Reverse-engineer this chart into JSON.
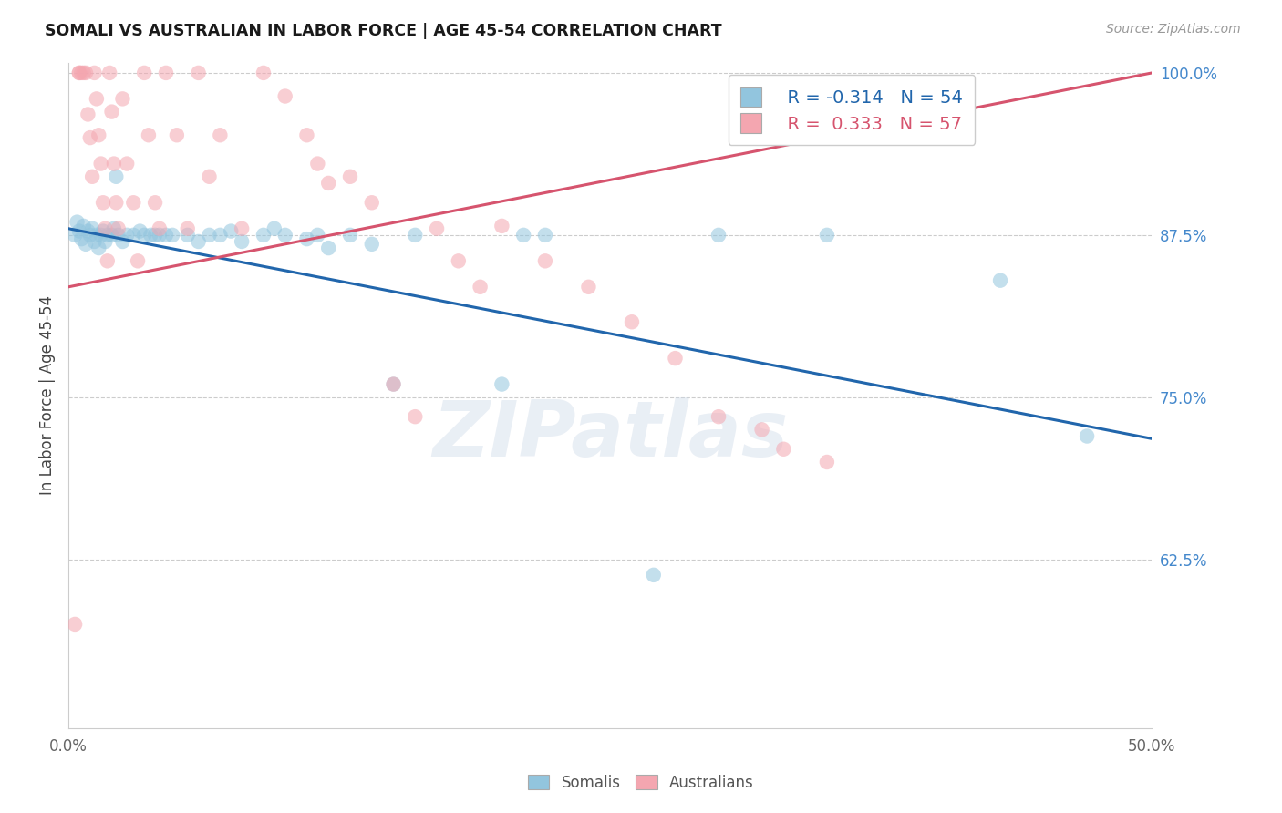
{
  "title": "SOMALI VS AUSTRALIAN IN LABOR FORCE | AGE 45-54 CORRELATION CHART",
  "source": "Source: ZipAtlas.com",
  "ylabel": "In Labor Force | Age 45-54",
  "xlim": [
    0.0,
    0.5
  ],
  "ylim": [
    0.495,
    1.008
  ],
  "yticks": [
    0.625,
    0.75,
    0.875,
    1.0
  ],
  "ytick_labels": [
    "62.5%",
    "75.0%",
    "87.5%",
    "100.0%"
  ],
  "legend_blue_r": "R = -0.314",
  "legend_blue_n": "N = 54",
  "legend_pink_r": "R =  0.333",
  "legend_pink_n": "N = 57",
  "blue_color": "#92c5de",
  "pink_color": "#f4a6b0",
  "trend_blue_color": "#2166ac",
  "trend_pink_color": "#d6546e",
  "blue_trend_x0": 0.0,
  "blue_trend_y0": 0.88,
  "blue_trend_x1": 0.5,
  "blue_trend_y1": 0.718,
  "pink_trend_x0": 0.0,
  "pink_trend_y0": 0.835,
  "pink_trend_x1": 0.5,
  "pink_trend_y1": 1.0,
  "somali_x": [
    0.003,
    0.004,
    0.005,
    0.006,
    0.007,
    0.008,
    0.009,
    0.01,
    0.011,
    0.012,
    0.013,
    0.014,
    0.015,
    0.016,
    0.017,
    0.018,
    0.02,
    0.021,
    0.022,
    0.023,
    0.025,
    0.027,
    0.03,
    0.033,
    0.035,
    0.038,
    0.04,
    0.042,
    0.045,
    0.048,
    0.055,
    0.06,
    0.065,
    0.07,
    0.075,
    0.08,
    0.09,
    0.095,
    0.1,
    0.11,
    0.115,
    0.12,
    0.13,
    0.14,
    0.15,
    0.16,
    0.2,
    0.21,
    0.22,
    0.27,
    0.3,
    0.35,
    0.43,
    0.47
  ],
  "somali_y": [
    0.875,
    0.885,
    0.878,
    0.872,
    0.882,
    0.868,
    0.878,
    0.875,
    0.88,
    0.87,
    0.875,
    0.865,
    0.875,
    0.878,
    0.87,
    0.875,
    0.875,
    0.88,
    0.92,
    0.875,
    0.87,
    0.875,
    0.875,
    0.878,
    0.875,
    0.875,
    0.875,
    0.875,
    0.875,
    0.875,
    0.875,
    0.87,
    0.875,
    0.875,
    0.878,
    0.87,
    0.875,
    0.88,
    0.875,
    0.872,
    0.875,
    0.865,
    0.875,
    0.868,
    0.76,
    0.875,
    0.76,
    0.875,
    0.875,
    0.613,
    0.875,
    0.875,
    0.84,
    0.72
  ],
  "australian_x": [
    0.003,
    0.005,
    0.006,
    0.007,
    0.008,
    0.009,
    0.01,
    0.011,
    0.012,
    0.013,
    0.014,
    0.015,
    0.016,
    0.017,
    0.018,
    0.019,
    0.02,
    0.021,
    0.022,
    0.023,
    0.025,
    0.027,
    0.03,
    0.032,
    0.035,
    0.037,
    0.04,
    0.042,
    0.045,
    0.05,
    0.055,
    0.06,
    0.065,
    0.07,
    0.08,
    0.09,
    0.1,
    0.11,
    0.115,
    0.12,
    0.13,
    0.14,
    0.15,
    0.16,
    0.17,
    0.18,
    0.19,
    0.2,
    0.22,
    0.24,
    0.26,
    0.28,
    0.3,
    0.32,
    0.33,
    0.35,
    0.005
  ],
  "australian_y": [
    0.575,
    1.0,
    1.0,
    1.0,
    1.0,
    0.968,
    0.95,
    0.92,
    1.0,
    0.98,
    0.952,
    0.93,
    0.9,
    0.88,
    0.855,
    1.0,
    0.97,
    0.93,
    0.9,
    0.88,
    0.98,
    0.93,
    0.9,
    0.855,
    1.0,
    0.952,
    0.9,
    0.88,
    1.0,
    0.952,
    0.88,
    1.0,
    0.92,
    0.952,
    0.88,
    1.0,
    0.982,
    0.952,
    0.93,
    0.915,
    0.92,
    0.9,
    0.76,
    0.735,
    0.88,
    0.855,
    0.835,
    0.882,
    0.855,
    0.835,
    0.808,
    0.78,
    0.735,
    0.725,
    0.71,
    0.7,
    1.0
  ]
}
